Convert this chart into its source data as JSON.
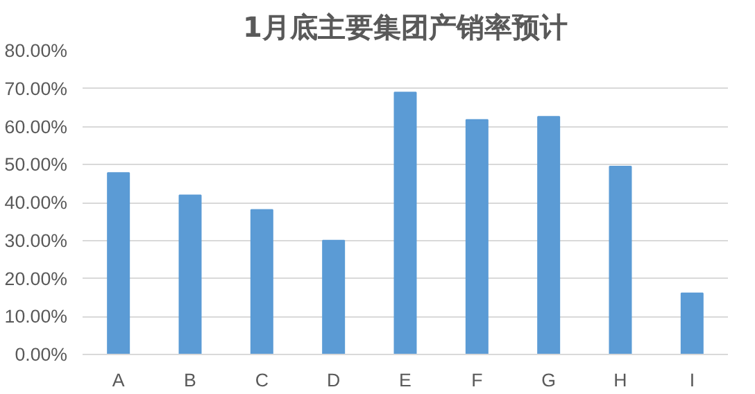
{
  "chart_data": {
    "type": "bar",
    "title": "1月底主要集团产销率预计",
    "categories": [
      "A",
      "B",
      "C",
      "D",
      "E",
      "F",
      "G",
      "H",
      "I"
    ],
    "values": [
      47.8,
      41.9,
      38.1,
      30.0,
      69.0,
      61.8,
      62.6,
      49.5,
      16.1
    ],
    "color": "#5b9bd5",
    "ylim": [
      0,
      80
    ],
    "yticks": [
      {
        "value": 0,
        "label": "0.00%"
      },
      {
        "value": 10,
        "label": "10.00%"
      },
      {
        "value": 20,
        "label": "20.00%"
      },
      {
        "value": 30,
        "label": "30.00%"
      },
      {
        "value": 40,
        "label": "40.00%"
      },
      {
        "value": 50,
        "label": "50.00%"
      },
      {
        "value": 60,
        "label": "60.00%"
      },
      {
        "value": 70,
        "label": "70.00%"
      },
      {
        "value": 80,
        "label": "80.00%"
      }
    ],
    "grid": "y"
  }
}
